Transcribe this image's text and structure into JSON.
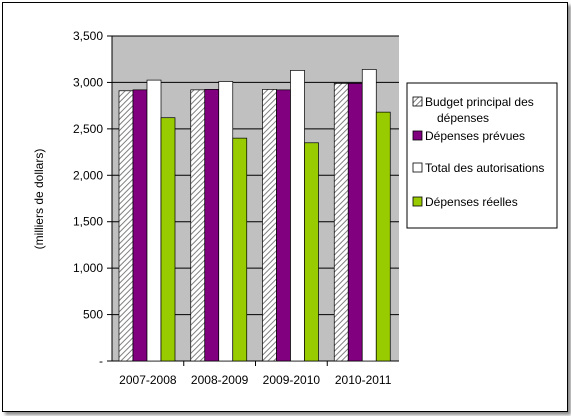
{
  "chart_data": {
    "type": "bar",
    "categories": [
      "2007-2008",
      "2008-2009",
      "2009-2010",
      "2010-2011"
    ],
    "series": [
      {
        "name": "Budget principal des dépenses",
        "values": [
          2910,
          2920,
          2925,
          2990
        ],
        "color": "#d9d9d9",
        "pattern": "diagonal-hatch"
      },
      {
        "name": "Dépenses prévues",
        "values": [
          2920,
          2925,
          2920,
          2990
        ],
        "color": "#800080"
      },
      {
        "name": "Total des autorisations",
        "values": [
          3025,
          3010,
          3130,
          3140
        ],
        "color": "#ffffff"
      },
      {
        "name": "Dépenses réelles",
        "values": [
          2620,
          2400,
          2350,
          2680
        ],
        "color": "#99cc00"
      }
    ],
    "legend_lines": [
      [
        "Budget principal des",
        "dépenses"
      ],
      [
        "Dépenses prévues"
      ],
      [
        "Total des autorisations"
      ],
      [
        "Dépenses réelles"
      ]
    ],
    "ylabel": "(milliers de dollars)",
    "ylim": [
      0,
      3500
    ],
    "ytick_labels": [
      "-",
      "500",
      "1,000",
      "1,500",
      "2,000",
      "2,500",
      "3,000",
      "3,500"
    ],
    "plot_background": "#c0c0c0",
    "grid": true,
    "legend_position": "right"
  }
}
